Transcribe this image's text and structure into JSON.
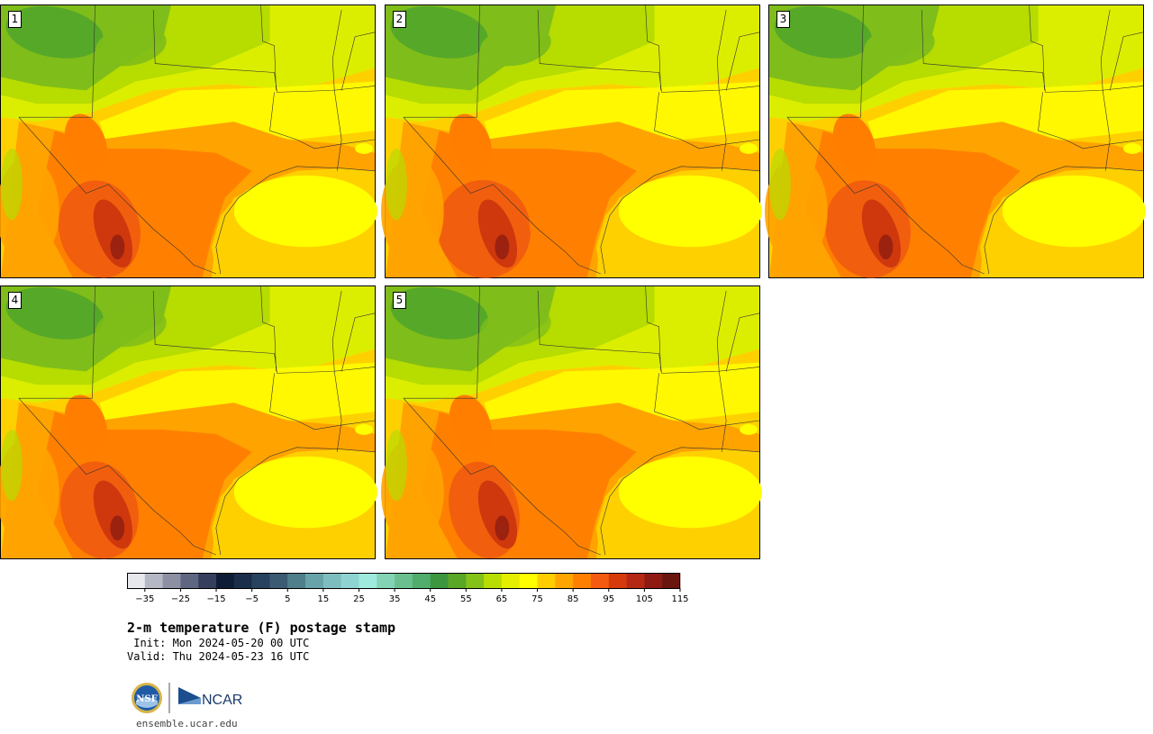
{
  "panels": [
    {
      "label": "1",
      "variant": 1.0
    },
    {
      "label": "2",
      "variant": 1.15
    },
    {
      "label": "3",
      "variant": 1.05
    },
    {
      "label": "4",
      "variant": 0.95
    },
    {
      "label": "5",
      "variant": 0.85
    }
  ],
  "colorbar": {
    "colors": [
      "#e6e8ec",
      "#b4b8c4",
      "#8c90a2",
      "#5f6680",
      "#36405e",
      "#0f1c35",
      "#1a2e4c",
      "#27435f",
      "#3a5b72",
      "#507f8c",
      "#67a3a8",
      "#7dbdbf",
      "#8ed3d2",
      "#9eeadd",
      "#82d4b4",
      "#69c08e",
      "#51ad6c",
      "#3c963f",
      "#5aa726",
      "#84c119",
      "#b8dd00",
      "#e4ef00",
      "#ffff00",
      "#ffcd00",
      "#ffa500",
      "#ff7f00",
      "#f45a10",
      "#d63a0a",
      "#b42814",
      "#8e1a12",
      "#6a160f"
    ],
    "ticks": [
      "−35",
      "−25",
      "−15",
      "−5",
      "5",
      "15",
      "25",
      "35",
      "45",
      "55",
      "65",
      "75",
      "85",
      "95",
      "105",
      "115"
    ]
  },
  "title": "2-m temperature (F) postage stamp",
  "init": " Init: Mon 2024-05-20 00 UTC",
  "valid": "Valid: Thu 2024-05-23 16 UTC",
  "logos": {
    "nsf": "NSF",
    "ncar": "NCAR"
  },
  "url": "ensemble.ucar.edu"
}
